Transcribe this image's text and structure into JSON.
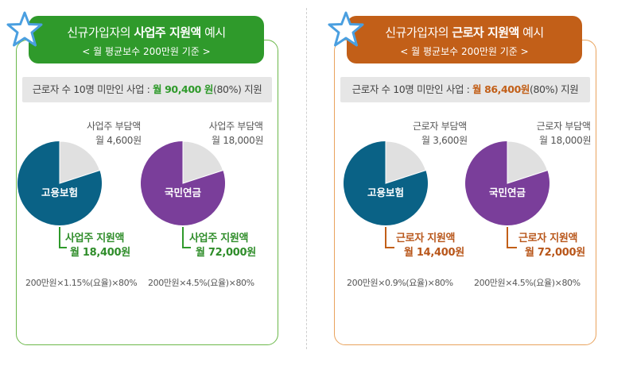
{
  "employer": {
    "title_prefix": "신규가입자의 ",
    "title_bold": "사업주 지원액",
    "title_suffix": " 예시",
    "subtitle": "< 월 평균보수 200만원 기준 >",
    "subsidy_prefix": "근로자 수 10명 미만인 사업 : ",
    "subsidy_amount": "월 90,400 원",
    "subsidy_suffix": "(80%) 지원"
  },
  "worker": {
    "title_prefix": "신규가입자의 ",
    "title_bold": "근로자 지원액",
    "title_suffix": " 예시",
    "subtitle": "< 월 평균보수 200만원 기준 >",
    "subsidy_prefix": "근로자 수 10명 미만인 사업 : ",
    "subsidy_amount": "월 86,400원",
    "subsidy_suffix": "(80%) 지원"
  },
  "colors": {
    "employment_insurance": "#0a6286",
    "national_pension": "#7a3e9a",
    "burden_slice": "#e0e0e0",
    "green_accent": "#2f9a2b",
    "orange_accent": "#c25f18"
  },
  "chart_data": [
    {
      "type": "pie",
      "center_label": "고용보험",
      "slices": [
        {
          "name": "사업주 부담액",
          "value": 4600,
          "label_line1": "사업주 부담액",
          "label_line2": "월 4,600원"
        },
        {
          "name": "사업주 지원액",
          "value": 18400,
          "label_line1": "사업주 지원액",
          "label_line2": "월 18,400원"
        }
      ],
      "formula": "200만원×1.15%(요율)×80%"
    },
    {
      "type": "pie",
      "center_label": "국민연금",
      "slices": [
        {
          "name": "사업주 부담액",
          "value": 18000,
          "label_line1": "사업주 부담액",
          "label_line2": "월 18,000원"
        },
        {
          "name": "사업주 지원액",
          "value": 72000,
          "label_line1": "사업주 지원액",
          "label_line2": "월 72,000원"
        }
      ],
      "formula": "200만원×4.5%(요율)×80%"
    },
    {
      "type": "pie",
      "center_label": "고용보험",
      "slices": [
        {
          "name": "근로자 부담액",
          "value": 3600,
          "label_line1": "근로자 부담액",
          "label_line2": "월 3,600원"
        },
        {
          "name": "근로자 지원액",
          "value": 14400,
          "label_line1": "근로자 지원액",
          "label_line2": "월 14,400원"
        }
      ],
      "formula": "200만원×0.9%(요율)×80%"
    },
    {
      "type": "pie",
      "center_label": "국민연금",
      "slices": [
        {
          "name": "근로자 부담액",
          "value": 18000,
          "label_line1": "근로자 부담액",
          "label_line2": "월 18,000원"
        },
        {
          "name": "근로자 지원액",
          "value": 72000,
          "label_line1": "근로자 지원액",
          "label_line2": "월 72,000원"
        }
      ],
      "formula": "200만원×4.5%(요율)×80%"
    }
  ]
}
